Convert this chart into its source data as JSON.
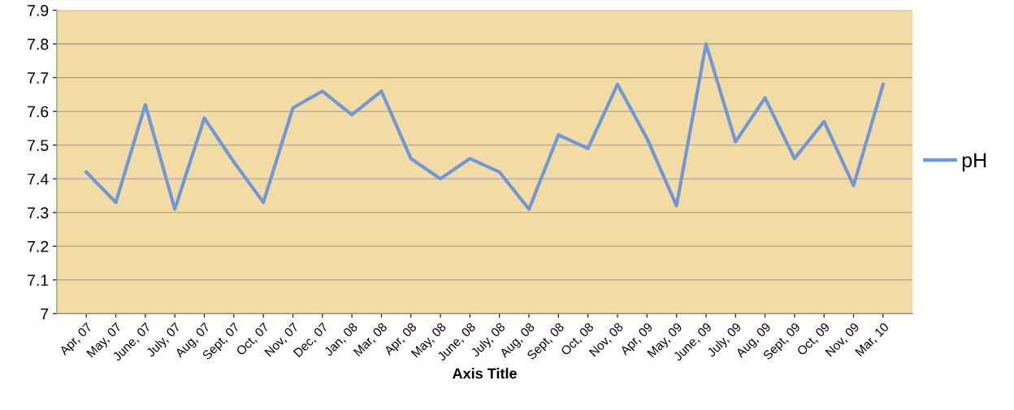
{
  "chart_data": {
    "type": "line",
    "xlabel": "Axis Title",
    "categories": [
      "Apr, 07",
      "May, 07",
      "June, 07",
      "July, 07",
      "Aug, 07",
      "Sept, 07",
      "Oct, 07",
      "Nov, 07",
      "Dec, 07",
      "Jan, 08",
      "Mar, 08",
      "Apr, 08",
      "May, 08",
      "June, 08",
      "July, 08",
      "Aug, 08",
      "Sept, 08",
      "Oct, 08",
      "Nov, 08",
      "Apr, 09",
      "May, 09",
      "June, 09",
      "July, 09",
      "Aug, 09",
      "Sept, 09",
      "Oct, 09",
      "Nov, 09",
      "Mar, 10"
    ],
    "series": [
      {
        "name": "pH",
        "color": "#6f98d8",
        "values": [
          7.42,
          7.33,
          7.62,
          7.31,
          7.58,
          7.45,
          7.33,
          7.61,
          7.66,
          7.59,
          7.66,
          7.46,
          7.4,
          7.46,
          7.42,
          7.31,
          7.53,
          7.49,
          7.68,
          7.52,
          7.32,
          7.8,
          7.51,
          7.64,
          7.46,
          7.57,
          7.38,
          7.68
        ]
      }
    ],
    "ylim": [
      7,
      7.9
    ],
    "yticks": [
      7,
      7.1,
      7.2,
      7.3,
      7.4,
      7.5,
      7.6,
      7.7,
      7.8,
      7.9
    ],
    "grid": "y",
    "legend": "right",
    "marker": "none",
    "line_style": "solid"
  }
}
